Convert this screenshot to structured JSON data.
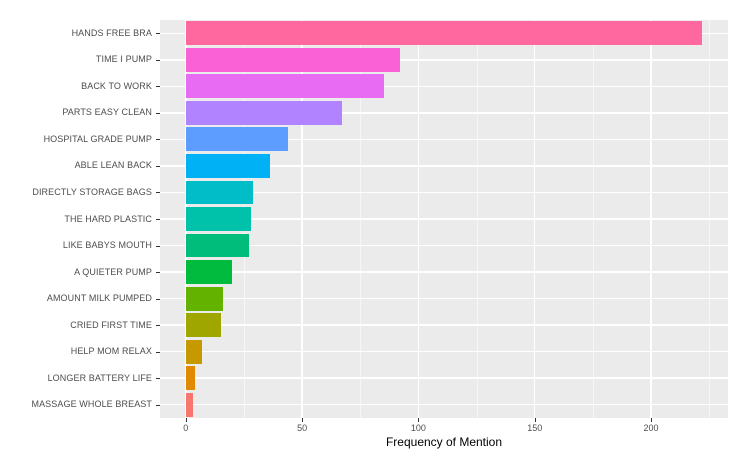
{
  "chart_data": {
    "type": "bar",
    "orientation": "horizontal",
    "title": "",
    "xlabel": "Frequency of Mention",
    "ylabel": "",
    "categories": [
      "HANDS FREE BRA",
      "TIME I PUMP",
      "BACK TO WORK",
      "PARTS EASY CLEAN",
      "HOSPITAL GRADE PUMP",
      "ABLE LEAN BACK",
      "DIRECTLY STORAGE BAGS",
      "THE HARD PLASTIC",
      "LIKE BABYS MOUTH",
      "A QUIETER PUMP",
      "AMOUNT MILK PUMPED",
      "CRIED FIRST TIME",
      "HELP MOM RELAX",
      "LONGER BATTERY LIFE",
      "MASSAGE WHOLE BREAST"
    ],
    "values": [
      222,
      92,
      85,
      67,
      44,
      36,
      29,
      28,
      27,
      20,
      16,
      15,
      7,
      4,
      3
    ],
    "colors": [
      "#FF689F",
      "#FB61D7",
      "#E76BF3",
      "#B183FF",
      "#5D9DFF",
      "#00B1F5",
      "#00BDC8",
      "#00C1A9",
      "#00BD7C",
      "#00BB3E",
      "#64B200",
      "#A0A600",
      "#C69900",
      "#E18A00",
      "#F8766D"
    ],
    "x_ticks": [
      0,
      50,
      100,
      150,
      200
    ],
    "x_minor_ticks": [
      25,
      75,
      125,
      175,
      225
    ],
    "xlim": [
      -11.1,
      233.1
    ],
    "bar_width_fraction": 0.9,
    "panel_bg": "#EBEBEB",
    "grid_color": "#FFFFFF",
    "axis_text_color": "#4D4D4D",
    "axis_title_color": "#000000",
    "legend": "none",
    "grid": "on"
  }
}
